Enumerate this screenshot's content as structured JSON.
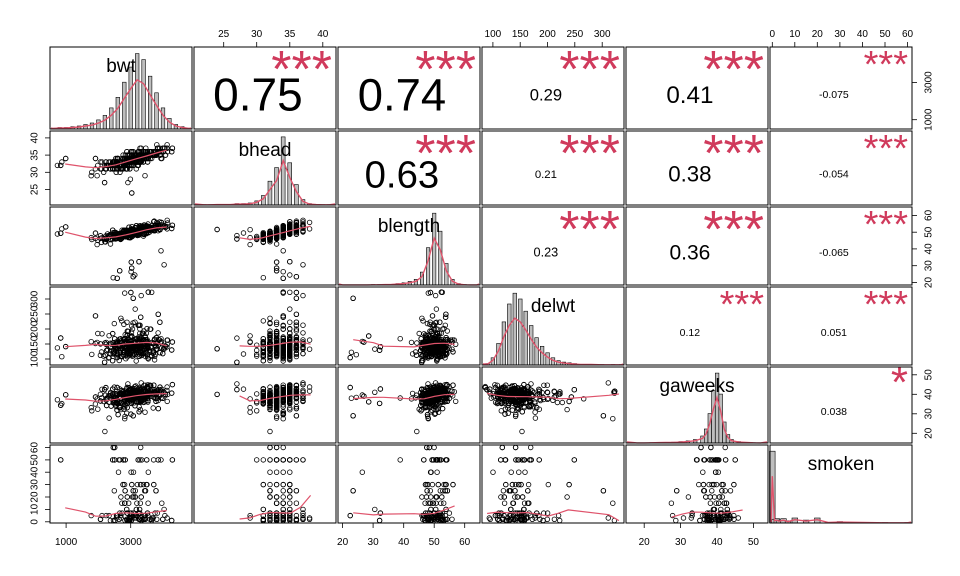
{
  "chart_data": {
    "type": "scatter_matrix",
    "variables": [
      {
        "name": "bwt",
        "range": [
          500,
          4900
        ],
        "ticks": [
          1000,
          3000
        ],
        "tick_labels": [
          "1000",
          "3000"
        ],
        "hist_range": [
          500,
          4900
        ]
      },
      {
        "name": "bhead",
        "range": [
          20.5,
          42
        ],
        "ticks": [
          25,
          30,
          35,
          40
        ],
        "tick_labels": [
          "25",
          "30",
          "35",
          "40"
        ],
        "hist_range": [
          20.5,
          42
        ]
      },
      {
        "name": "blength",
        "range": [
          18.5,
          65
        ],
        "ticks": [
          20,
          30,
          40,
          50,
          60
        ],
        "tick_labels": [
          "20",
          "30",
          "40",
          "50",
          "60"
        ],
        "hist_range": [
          18.5,
          65
        ]
      },
      {
        "name": "delwt",
        "range": [
          80,
          340
        ],
        "ticks": [
          100,
          150,
          200,
          250,
          300
        ],
        "tick_labels": [
          "100",
          "150",
          "200",
          "250",
          "300"
        ],
        "hist_range": [
          80,
          340
        ]
      },
      {
        "name": "gaweeks",
        "range": [
          15,
          54
        ],
        "ticks": [
          20,
          30,
          40,
          50
        ],
        "tick_labels": [
          "20",
          "30",
          "40",
          "50"
        ],
        "hist_range": [
          15,
          54
        ]
      },
      {
        "name": "smoken",
        "range": [
          -1,
          62
        ],
        "ticks": [
          0,
          10,
          20,
          30,
          40,
          50,
          60
        ],
        "tick_labels": [
          "0",
          "10",
          "20",
          "30",
          "40",
          "50",
          "60"
        ],
        "hist_range": [
          -1,
          62
        ]
      }
    ],
    "correlations": [
      {
        "row": 0,
        "col": 1,
        "value": "0.75",
        "stars": "***"
      },
      {
        "row": 0,
        "col": 2,
        "value": "0.74",
        "stars": "***"
      },
      {
        "row": 0,
        "col": 3,
        "value": "0.29",
        "stars": "***"
      },
      {
        "row": 0,
        "col": 4,
        "value": "0.41",
        "stars": "***"
      },
      {
        "row": 0,
        "col": 5,
        "value": "-0.075",
        "stars": "***"
      },
      {
        "row": 1,
        "col": 2,
        "value": "0.63",
        "stars": "***"
      },
      {
        "row": 1,
        "col": 3,
        "value": "0.21",
        "stars": "***"
      },
      {
        "row": 1,
        "col": 4,
        "value": "0.38",
        "stars": "***"
      },
      {
        "row": 1,
        "col": 5,
        "value": "-0.054",
        "stars": "***"
      },
      {
        "row": 2,
        "col": 3,
        "value": "0.23",
        "stars": "***"
      },
      {
        "row": 2,
        "col": 4,
        "value": "0.36",
        "stars": "***"
      },
      {
        "row": 2,
        "col": 5,
        "value": "-0.065",
        "stars": "***"
      },
      {
        "row": 3,
        "col": 4,
        "value": "0.12",
        "stars": "***"
      },
      {
        "row": 3,
        "col": 5,
        "value": "0.051",
        "stars": "***"
      },
      {
        "row": 4,
        "col": 5,
        "value": "0.038",
        "stars": "*"
      }
    ],
    "histograms": {
      "bwt": {
        "bins": [
          600,
          800,
          1000,
          1200,
          1400,
          1600,
          1800,
          2000,
          2200,
          2400,
          2600,
          2800,
          3000,
          3200,
          3400,
          3600,
          3800,
          4000,
          4200,
          4400,
          4600,
          4800
        ],
        "density": [
          0.01,
          0.02,
          0.02,
          0.03,
          0.04,
          0.06,
          0.08,
          0.12,
          0.18,
          0.28,
          0.42,
          0.62,
          0.82,
          1.0,
          0.92,
          0.7,
          0.48,
          0.28,
          0.14,
          0.06,
          0.03,
          0.01
        ]
      },
      "bhead": {
        "bins": [
          22,
          23,
          24,
          25,
          26,
          27,
          28,
          29,
          30,
          31,
          32,
          33,
          34,
          35,
          36,
          37,
          38,
          39,
          40,
          41
        ],
        "density": [
          0.005,
          0.005,
          0.01,
          0.01,
          0.01,
          0.02,
          0.02,
          0.03,
          0.06,
          0.14,
          0.35,
          0.55,
          1.0,
          0.62,
          0.3,
          0.08,
          0.02,
          0.01,
          0.005,
          0.005
        ]
      },
      "blength": {
        "bins": [
          20,
          22,
          24,
          26,
          28,
          30,
          32,
          34,
          36,
          38,
          40,
          42,
          44,
          46,
          48,
          50,
          52,
          54,
          56,
          58,
          60,
          62,
          64
        ],
        "density": [
          0.003,
          0.003,
          0.003,
          0.003,
          0.003,
          0.005,
          0.005,
          0.008,
          0.01,
          0.02,
          0.03,
          0.05,
          0.08,
          0.18,
          0.52,
          1.0,
          0.75,
          0.3,
          0.08,
          0.02,
          0.005,
          0.003,
          0.003
        ]
      },
      "delwt": {
        "bins": [
          90,
          100,
          110,
          120,
          130,
          140,
          150,
          160,
          170,
          180,
          190,
          200,
          210,
          220,
          230,
          240,
          250,
          260,
          280,
          300,
          320,
          335
        ],
        "density": [
          0.02,
          0.1,
          0.3,
          0.6,
          0.85,
          1.0,
          0.92,
          0.75,
          0.55,
          0.38,
          0.26,
          0.17,
          0.1,
          0.06,
          0.04,
          0.03,
          0.02,
          0.01,
          0.01,
          0.005,
          0.005,
          0.005
        ]
      },
      "gaweeks": {
        "bins": [
          18,
          20,
          22,
          24,
          26,
          28,
          30,
          32,
          34,
          36,
          37,
          38,
          39,
          40,
          41,
          42,
          43,
          44,
          46,
          48,
          50,
          52
        ],
        "density": [
          0.003,
          0.003,
          0.005,
          0.008,
          0.01,
          0.012,
          0.02,
          0.03,
          0.05,
          0.1,
          0.2,
          0.42,
          0.75,
          1.0,
          0.7,
          0.3,
          0.12,
          0.05,
          0.02,
          0.01,
          0.005,
          0.003
        ]
      },
      "smoken": {
        "bins": [
          0,
          1,
          2,
          3,
          5,
          7,
          10,
          15,
          20,
          25,
          30,
          40,
          50,
          60
        ],
        "density": [
          1.0,
          0.05,
          0.06,
          0.04,
          0.06,
          0.03,
          0.07,
          0.04,
          0.07,
          0.01,
          0.02,
          0.01,
          0.005,
          0.005
        ]
      }
    },
    "colors": {
      "points": "#000000",
      "smooth": "#DF536B",
      "density": "#DF536B",
      "stars": "#D03A5C",
      "bars": "#BEBEBE",
      "border": "#000000"
    }
  }
}
